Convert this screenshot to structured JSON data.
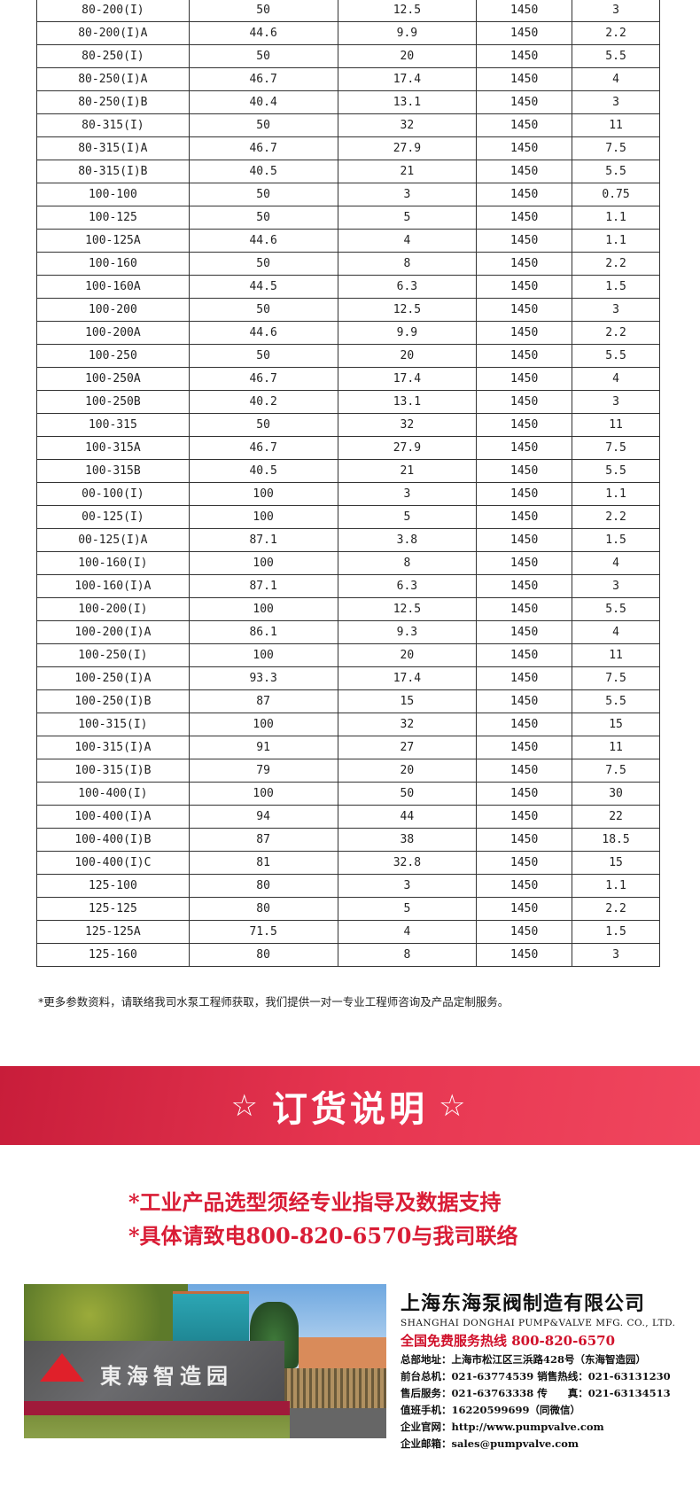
{
  "table": {
    "rows": [
      [
        "80-200(I)",
        "50",
        "12.5",
        "1450",
        "3"
      ],
      [
        "80-200(I)A",
        "44.6",
        "9.9",
        "1450",
        "2.2"
      ],
      [
        "80-250(I)",
        "50",
        "20",
        "1450",
        "5.5"
      ],
      [
        "80-250(I)A",
        "46.7",
        "17.4",
        "1450",
        "4"
      ],
      [
        "80-250(I)B",
        "40.4",
        "13.1",
        "1450",
        "3"
      ],
      [
        "80-315(I)",
        "50",
        "32",
        "1450",
        "11"
      ],
      [
        "80-315(I)A",
        "46.7",
        "27.9",
        "1450",
        "7.5"
      ],
      [
        "80-315(I)B",
        "40.5",
        "21",
        "1450",
        "5.5"
      ],
      [
        "100-100",
        "50",
        "3",
        "1450",
        "0.75"
      ],
      [
        "100-125",
        "50",
        "5",
        "1450",
        "1.1"
      ],
      [
        "100-125A",
        "44.6",
        "4",
        "1450",
        "1.1"
      ],
      [
        "100-160",
        "50",
        "8",
        "1450",
        "2.2"
      ],
      [
        "100-160A",
        "44.5",
        "6.3",
        "1450",
        "1.5"
      ],
      [
        "100-200",
        "50",
        "12.5",
        "1450",
        "3"
      ],
      [
        "100-200A",
        "44.6",
        "9.9",
        "1450",
        "2.2"
      ],
      [
        "100-250",
        "50",
        "20",
        "1450",
        "5.5"
      ],
      [
        "100-250A",
        "46.7",
        "17.4",
        "1450",
        "4"
      ],
      [
        "100-250B",
        "40.2",
        "13.1",
        "1450",
        "3"
      ],
      [
        "100-315",
        "50",
        "32",
        "1450",
        "11"
      ],
      [
        "100-315A",
        "46.7",
        "27.9",
        "1450",
        "7.5"
      ],
      [
        "100-315B",
        "40.5",
        "21",
        "1450",
        "5.5"
      ],
      [
        "00-100(I)",
        "100",
        "3",
        "1450",
        "1.1"
      ],
      [
        "00-125(I)",
        "100",
        "5",
        "1450",
        "2.2"
      ],
      [
        "00-125(I)A",
        "87.1",
        "3.8",
        "1450",
        "1.5"
      ],
      [
        "100-160(I)",
        "100",
        "8",
        "1450",
        "4"
      ],
      [
        "100-160(I)A",
        "87.1",
        "6.3",
        "1450",
        "3"
      ],
      [
        "100-200(I)",
        "100",
        "12.5",
        "1450",
        "5.5"
      ],
      [
        "100-200(I)A",
        "86.1",
        "9.3",
        "1450",
        "4"
      ],
      [
        "100-250(I)",
        "100",
        "20",
        "1450",
        "11"
      ],
      [
        "100-250(I)A",
        "93.3",
        "17.4",
        "1450",
        "7.5"
      ],
      [
        "100-250(I)B",
        "87",
        "15",
        "1450",
        "5.5"
      ],
      [
        "100-315(I)",
        "100",
        "32",
        "1450",
        "15"
      ],
      [
        "100-315(I)A",
        "91",
        "27",
        "1450",
        "11"
      ],
      [
        "100-315(I)B",
        "79",
        "20",
        "1450",
        "7.5"
      ],
      [
        "100-400(I)",
        "100",
        "50",
        "1450",
        "30"
      ],
      [
        "100-400(I)A",
        "94",
        "44",
        "1450",
        "22"
      ],
      [
        "100-400(I)B",
        "87",
        "38",
        "1450",
        "18.5"
      ],
      [
        "100-400(I)C",
        "81",
        "32.8",
        "1450",
        "15"
      ],
      [
        "125-100",
        "80",
        "3",
        "1450",
        "1.1"
      ],
      [
        "125-125",
        "80",
        "5",
        "1450",
        "2.2"
      ],
      [
        "125-125A",
        "71.5",
        "4",
        "1450",
        "1.5"
      ],
      [
        "125-160",
        "80",
        "8",
        "1450",
        "3"
      ]
    ]
  },
  "note": "*更多参数资料，请联络我司水泵工程师获取，我们提供一对一专业工程师咨询及产品定制服务。",
  "banner": {
    "star": "☆",
    "title": "订货说明",
    "color": "#e0304a"
  },
  "order_lines": [
    "*工业产品选型须经专业指导及数据支持",
    "*具体请致电800-820-6570与我司联络"
  ],
  "photo": {
    "sign_text": "東海智造园"
  },
  "company": {
    "name": "上海东海泵阀制造有限公司",
    "name_en": "SHANGHAI DONGHAI PUMP&VALVE MFG. CO., LTD.",
    "hotline": "全国免费服务热线  800-820-6570",
    "lines": [
      "总部地址：上海市松江区三浜路428号（东海智造园）",
      "前台总机：021-63774539   销售热线：021-63131230",
      "售后服务：021-63763338   传　　真：021-63134513",
      "值班手机：16220599699（同微信）",
      "企业官网：http://www.pumpvalve.com",
      "企业邮箱：sales@pumpvalve.com"
    ]
  }
}
